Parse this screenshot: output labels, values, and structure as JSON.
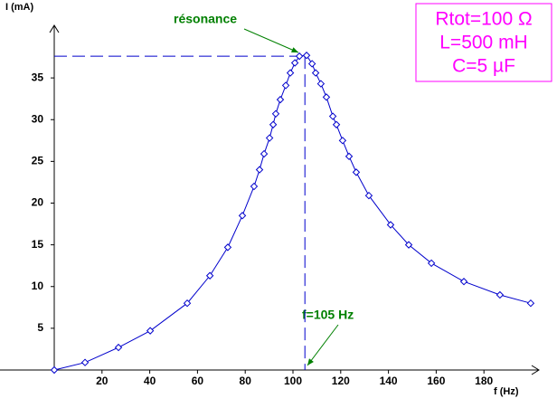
{
  "chart_data": {
    "type": "line",
    "y_label": "I (mA)",
    "x_label": "f (Hz)",
    "x": [
      0,
      12.9,
      26.9,
      40.2,
      55.7,
      65.2,
      72.7,
      78.8,
      83.7,
      86,
      87.9,
      90.2,
      91.7,
      92.8,
      94.7,
      97,
      98.9,
      100.8,
      102.7,
      105.7,
      108,
      109.5,
      111.7,
      114,
      116.7,
      118.2,
      120.8,
      123.5,
      126.5,
      131.8,
      140.9,
      148.5,
      158,
      171.6,
      186.7,
      199.6
    ],
    "series": [
      {
        "name": "I",
        "color": "#0000cc",
        "marker": "diamond",
        "values": [
          0,
          0.9,
          2.7,
          4.7,
          8.0,
          11.3,
          14.7,
          18.5,
          22.0,
          24.0,
          25.9,
          27.8,
          29.4,
          30.7,
          32.4,
          34.1,
          35.6,
          36.8,
          37.6,
          37.7,
          36.7,
          35.6,
          34.3,
          32.7,
          30.4,
          29.4,
          27.5,
          25.6,
          23.7,
          20.9,
          17.4,
          15.0,
          12.8,
          10.6,
          9.0,
          8.0
        ]
      }
    ],
    "xlim": [
      0,
      200
    ],
    "ylim": [
      0,
      40
    ],
    "xticks": [
      20,
      40,
      60,
      80,
      100,
      120,
      140,
      160,
      180
    ],
    "yticks": [
      5,
      10,
      15,
      20,
      25,
      30,
      35
    ],
    "guide_point": {
      "x": 105,
      "y": 37.6,
      "color": "#0000cc"
    },
    "annotations": [
      {
        "text": "résonance",
        "color": "#008000"
      },
      {
        "text": "f=105 Hz",
        "color": "#008000"
      }
    ],
    "info_box": {
      "color": "#ff00ff",
      "lines": [
        "Rtot=100 Ω",
        "L=500 mH",
        "C=5 µF"
      ]
    }
  }
}
